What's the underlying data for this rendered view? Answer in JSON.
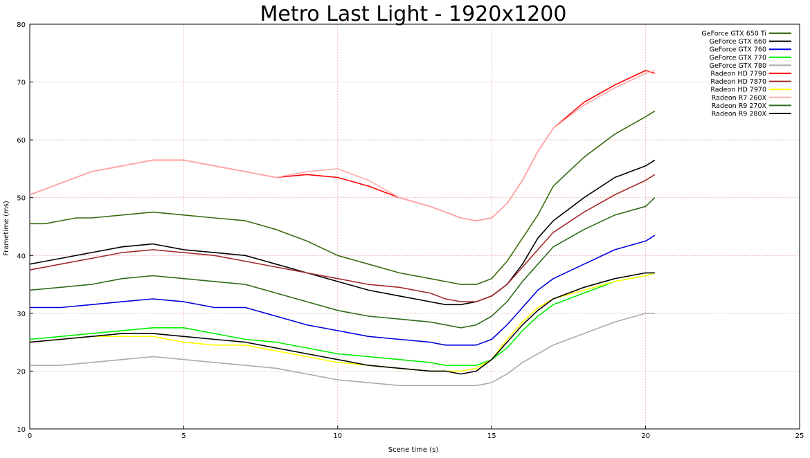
{
  "chart_data": {
    "type": "line",
    "title": "Metro Last Light - 1920x1200",
    "xlabel": "Scene time (s)",
    "ylabel": "Frametime (ms)",
    "xlim": [
      0,
      25
    ],
    "ylim": [
      10,
      80
    ],
    "xticks": [
      0,
      5,
      10,
      15,
      20,
      25
    ],
    "yticks": [
      10,
      20,
      30,
      40,
      50,
      60,
      70,
      80
    ],
    "grid": true,
    "legend_position": "top-right",
    "series": [
      {
        "name": "GeForce GTX 650 Ti",
        "color": "#3a6b10",
        "x": [
          0,
          0.5,
          1,
          1.5,
          2,
          3,
          4,
          5,
          6,
          7,
          8,
          9,
          10,
          11,
          12,
          13,
          13.5,
          14,
          14.5,
          15,
          15.5,
          16,
          16.5,
          17,
          18,
          19,
          20,
          20.3
        ],
        "y": [
          45.5,
          45.5,
          46,
          46.5,
          46.5,
          47,
          47.5,
          47,
          46.5,
          46,
          44.5,
          42.5,
          40,
          38.5,
          37,
          36,
          35.5,
          35,
          35,
          36,
          39,
          43,
          47,
          52,
          57,
          61,
          64,
          65
        ]
      },
      {
        "name": "GeForce GTX 660",
        "color": "#000000",
        "x": [
          0,
          0.5,
          1,
          2,
          3,
          4,
          5,
          6,
          7,
          8,
          9,
          10,
          11,
          12,
          13,
          13.5,
          14,
          14.5,
          15,
          15.5,
          16,
          16.5,
          17,
          18,
          19,
          20,
          20.3
        ],
        "y": [
          38.5,
          39,
          39.5,
          40.5,
          41.5,
          42,
          41,
          40.5,
          40,
          38.5,
          37,
          35.5,
          34,
          33,
          32,
          31.5,
          31.5,
          32,
          33,
          35,
          38.5,
          43,
          46,
          50,
          53.5,
          55.5,
          56.5
        ]
      },
      {
        "name": "GeForce GTX 760",
        "color": "#0000dd",
        "x": [
          0,
          1,
          2,
          3,
          4,
          5,
          6,
          7,
          8,
          9,
          10,
          11,
          12,
          13,
          13.5,
          14,
          14.5,
          15,
          15.5,
          16,
          16.5,
          17,
          18,
          19,
          20,
          20.3
        ],
        "y": [
          31,
          31,
          31.5,
          32,
          32.5,
          32,
          31,
          31,
          29.5,
          28,
          27,
          26,
          25.5,
          25,
          24.5,
          24.5,
          24.5,
          25.5,
          28,
          31,
          34,
          36,
          38.5,
          41,
          42.5,
          43.5
        ]
      },
      {
        "name": "GeForce GTX 770",
        "color": "#00ee00",
        "x": [
          0,
          1,
          2,
          3,
          4,
          5,
          6,
          7,
          8,
          9,
          10,
          11,
          12,
          13,
          13.5,
          14,
          14.5,
          15,
          15.5,
          16,
          16.5,
          17,
          18,
          19,
          20,
          20.3
        ],
        "y": [
          25.5,
          26,
          26.5,
          27,
          27.5,
          27.5,
          26.5,
          25.5,
          25,
          24,
          23,
          22.5,
          22,
          21.5,
          21,
          21,
          21,
          22,
          24,
          27,
          29.5,
          31.5,
          33.5,
          35.5,
          36.5,
          37
        ]
      },
      {
        "name": "GeForce GTX 780",
        "color": "#aaaaaa",
        "x": [
          0,
          1,
          2,
          3,
          4,
          5,
          6,
          7,
          8,
          9,
          10,
          11,
          12,
          13,
          13.5,
          14,
          14.5,
          15,
          15.5,
          16,
          16.5,
          17,
          18,
          19,
          20,
          20.3
        ],
        "y": [
          21,
          21,
          21.5,
          22,
          22.5,
          22,
          21.5,
          21,
          20.5,
          19.5,
          18.5,
          18,
          17.5,
          17.5,
          17.5,
          17.5,
          17.5,
          18,
          19.5,
          21.5,
          23,
          24.5,
          26.5,
          28.5,
          30,
          30
        ]
      },
      {
        "name": "Radeon HD 7790",
        "color": "#ff0000",
        "x": [
          0,
          0.5,
          1,
          2,
          3,
          4,
          5,
          6,
          7,
          8,
          9,
          10,
          11,
          12,
          13,
          13.5,
          14,
          14.5,
          15,
          15.5,
          16,
          16.5,
          17,
          18,
          19,
          20,
          20.3
        ],
        "y": [
          50.5,
          51.5,
          52.5,
          54.5,
          55.5,
          56.5,
          56.5,
          55.5,
          54.5,
          53.5,
          54,
          53.5,
          52,
          50,
          48.5,
          47.5,
          46.5,
          46,
          46.5,
          49,
          53,
          58,
          62,
          66.5,
          69.5,
          72,
          71.5
        ]
      },
      {
        "name": "Radeon HD 7870",
        "color": "#a52a2a",
        "x": [
          0,
          1,
          2,
          3,
          4,
          5,
          6,
          7,
          8,
          9,
          10,
          11,
          12,
          13,
          13.5,
          14,
          14.5,
          15,
          15.5,
          16,
          16.5,
          17,
          18,
          19,
          20,
          20.3
        ],
        "y": [
          37.5,
          38.5,
          39.5,
          40.5,
          41,
          40.5,
          40,
          39,
          38,
          37,
          36,
          35,
          34.5,
          33.5,
          32.5,
          32,
          32,
          33,
          35,
          38,
          41,
          44,
          47.5,
          50.5,
          53,
          54
        ]
      },
      {
        "name": "Radeon HD 7970",
        "color": "#ffff00",
        "x": [
          0,
          1,
          2,
          3,
          4,
          5,
          6,
          7,
          8,
          9,
          10,
          11,
          12,
          13,
          13.5,
          14,
          14.5,
          15,
          15.5,
          16,
          16.5,
          17,
          18,
          19,
          20,
          20.3
        ],
        "y": [
          25,
          25.5,
          26,
          26,
          26,
          25,
          24.5,
          24.5,
          23.5,
          22.5,
          21.5,
          21,
          20.5,
          20,
          20,
          20,
          20.5,
          22,
          25.5,
          28.5,
          31,
          32.5,
          34,
          35.5,
          36.5,
          37
        ]
      },
      {
        "name": "Radeon R7 260X",
        "color": "#ffaaaa",
        "x": [
          0,
          0.5,
          1,
          2,
          3,
          4,
          5,
          6,
          7,
          8,
          9,
          10,
          11,
          12,
          13,
          13.5,
          14,
          14.5,
          15,
          15.5,
          16,
          16.5,
          17,
          18,
          19,
          20,
          20.3
        ],
        "y": [
          50.5,
          51.5,
          52.5,
          54.5,
          55.5,
          56.5,
          56.5,
          55.5,
          54.5,
          53.5,
          54.5,
          55,
          53,
          50,
          48.5,
          47.5,
          46.5,
          46,
          46.5,
          49,
          53,
          58,
          62,
          66,
          69,
          71.5,
          72
        ]
      },
      {
        "name": "Radeon R9 270X",
        "color": "#2e6b1a",
        "x": [
          0,
          1,
          2,
          3,
          4,
          5,
          6,
          7,
          8,
          9,
          10,
          11,
          12,
          13,
          13.5,
          14,
          14.5,
          15,
          15.5,
          16,
          16.5,
          17,
          18,
          19,
          20,
          20.3
        ],
        "y": [
          34,
          34.5,
          35,
          36,
          36.5,
          36,
          35.5,
          35,
          33.5,
          32,
          30.5,
          29.5,
          29,
          28.5,
          28,
          27.5,
          28,
          29.5,
          32,
          35.5,
          38.5,
          41.5,
          44.5,
          47,
          48.5,
          50
        ]
      },
      {
        "name": "Radeon R9 280X",
        "color": "#000000",
        "x": [
          0,
          1,
          2,
          3,
          4,
          5,
          6,
          7,
          8,
          9,
          10,
          11,
          12,
          13,
          13.5,
          14,
          14.5,
          15,
          15.5,
          16,
          16.5,
          17,
          18,
          19,
          20,
          20.3
        ],
        "y": [
          25,
          25.5,
          26,
          26.5,
          26.5,
          26,
          25.5,
          25,
          24,
          23,
          22,
          21,
          20.5,
          20,
          20,
          19.5,
          20,
          22,
          25,
          28,
          30.5,
          32.5,
          34.5,
          36,
          37,
          37
        ]
      }
    ]
  }
}
